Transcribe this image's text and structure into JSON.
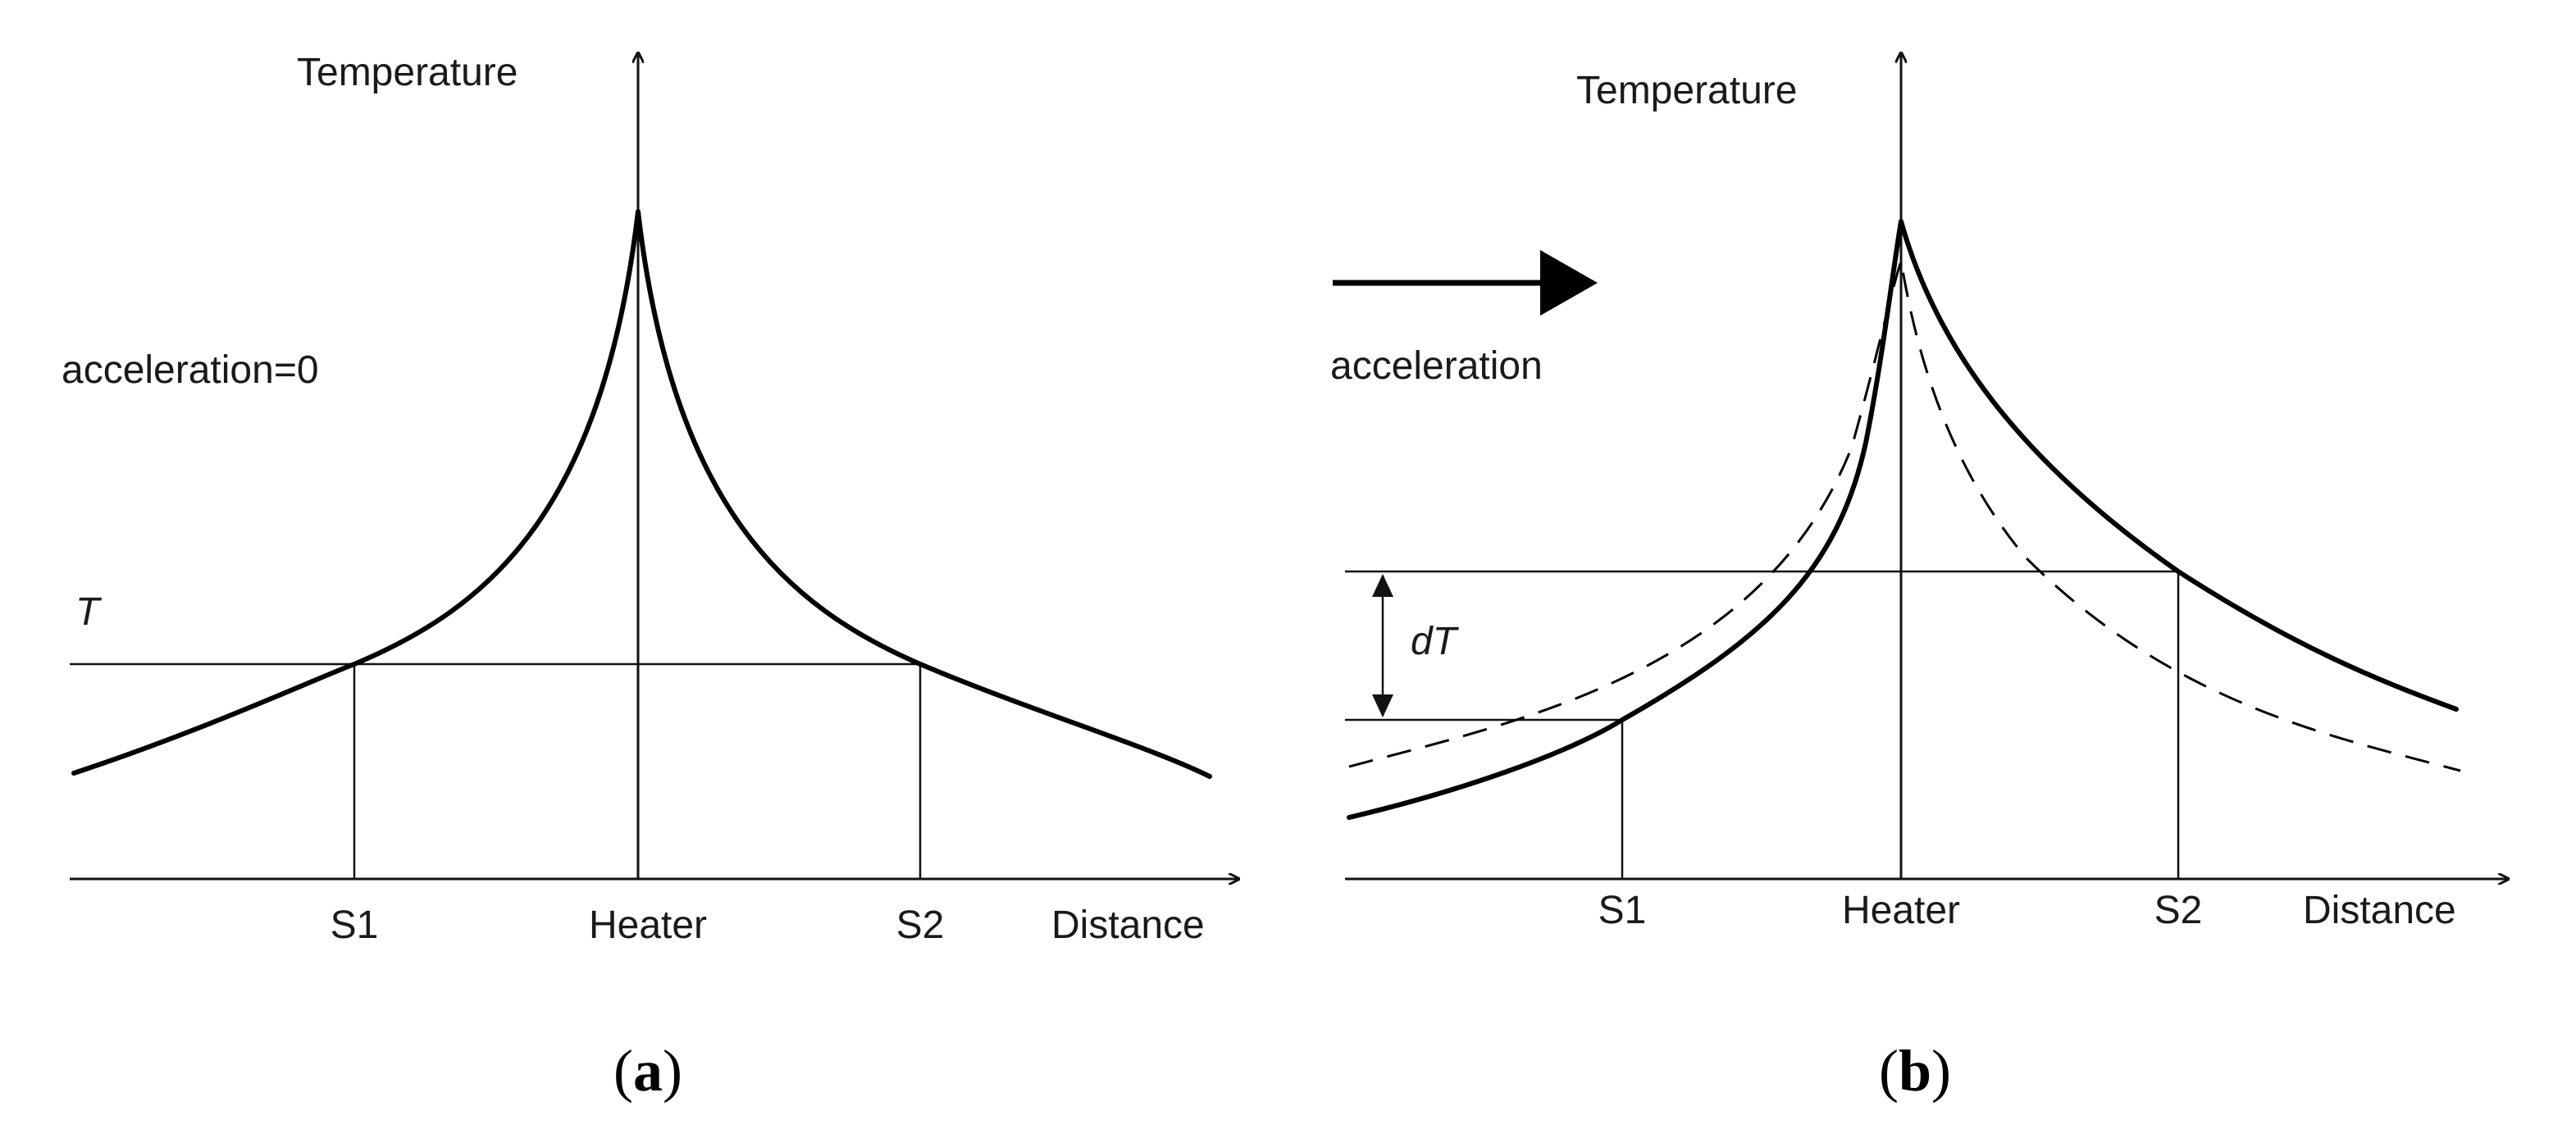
{
  "panel_a": {
    "y_axis_label": "Temperature",
    "x_axis_label": "Distance",
    "condition_label": "acceleration=0",
    "threshold_label": "T",
    "ticks": [
      "S1",
      "Heater",
      "S2"
    ],
    "caption_open": "(",
    "caption_letter": "a",
    "caption_close": ")"
  },
  "panel_b": {
    "y_axis_label": "Temperature",
    "x_axis_label": "Distance",
    "condition_label": "acceleration",
    "delta_label": "dT",
    "ticks": [
      "S1",
      "Heater",
      "S2"
    ],
    "caption_open": "(",
    "caption_letter": "b",
    "caption_close": ")"
  }
}
